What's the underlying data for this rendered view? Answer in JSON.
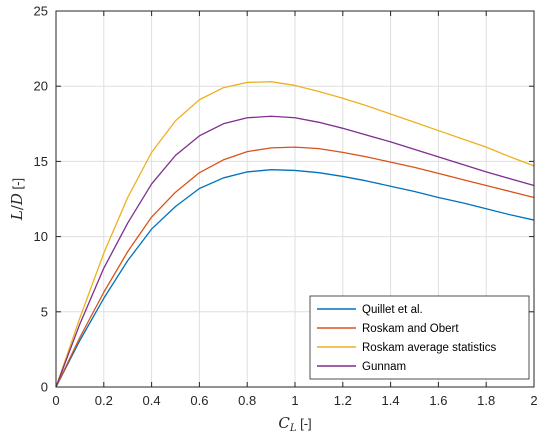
{
  "chart_data": {
    "type": "line",
    "xlabel": "C_L [-]",
    "ylabel": "L/D [-]",
    "xlim": [
      0,
      2
    ],
    "ylim": [
      0,
      25
    ],
    "xticks": [
      "0",
      "0.2",
      "0.4",
      "0.6",
      "0.8",
      "1",
      "1.2",
      "1.4",
      "1.6",
      "1.8",
      "2"
    ],
    "yticks": [
      "0",
      "5",
      "10",
      "15",
      "20",
      "25"
    ],
    "grid": true,
    "legend_position": "bottom-right",
    "x": [
      0,
      0.1,
      0.2,
      0.3,
      0.4,
      0.5,
      0.6,
      0.7,
      0.8,
      0.9,
      1.0,
      1.1,
      1.2,
      1.3,
      1.4,
      1.5,
      1.6,
      1.7,
      1.8,
      1.9,
      2.0
    ],
    "series": [
      {
        "name": "Quillet et al.",
        "color": "#0072BD",
        "values": [
          0,
          3.1,
          5.9,
          8.4,
          10.5,
          12.0,
          13.2,
          13.9,
          14.3,
          14.45,
          14.4,
          14.25,
          14.0,
          13.7,
          13.35,
          13.0,
          12.6,
          12.25,
          11.85,
          11.45,
          11.1
        ]
      },
      {
        "name": "Roskam and Obert",
        "color": "#D95319",
        "values": [
          0,
          3.3,
          6.3,
          9.0,
          11.3,
          12.95,
          14.25,
          15.1,
          15.65,
          15.9,
          15.95,
          15.85,
          15.6,
          15.3,
          14.95,
          14.6,
          14.2,
          13.8,
          13.4,
          13.0,
          12.6
        ]
      },
      {
        "name": "Roskam average statistics",
        "color": "#EDB120",
        "values": [
          0,
          4.6,
          8.9,
          12.6,
          15.6,
          17.7,
          19.1,
          19.9,
          20.25,
          20.3,
          20.05,
          19.65,
          19.2,
          18.7,
          18.15,
          17.6,
          17.05,
          16.5,
          15.95,
          15.3,
          14.7
        ]
      },
      {
        "name": "Gunnam",
        "color": "#7E2F8E",
        "values": [
          0,
          4.2,
          7.9,
          10.9,
          13.5,
          15.4,
          16.7,
          17.5,
          17.9,
          18.0,
          17.9,
          17.6,
          17.2,
          16.75,
          16.3,
          15.8,
          15.3,
          14.8,
          14.3,
          13.85,
          13.4
        ]
      }
    ]
  }
}
